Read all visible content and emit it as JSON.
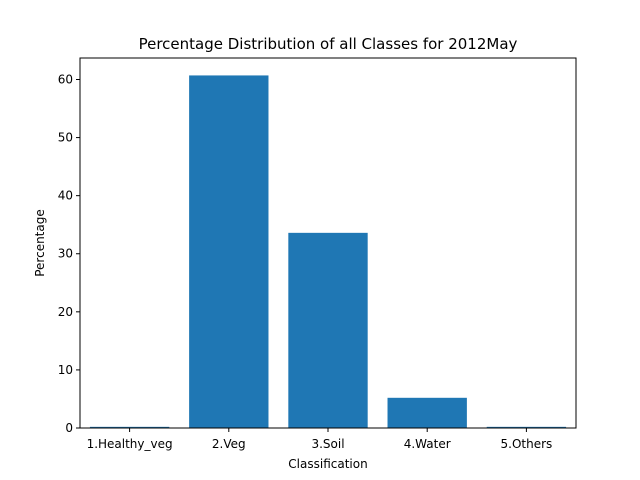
{
  "chart_data": {
    "type": "bar",
    "title": "Percentage Distribution of all Classes for 2012May",
    "xlabel": "Classification",
    "ylabel": "Percentage",
    "categories": [
      "1.Healthy_veg",
      "2.Veg",
      "3.Soil",
      "4.Water",
      "5.Others"
    ],
    "values": [
      0.2,
      60.7,
      33.6,
      5.2,
      0.2
    ],
    "ylim": [
      0,
      63.7
    ],
    "yticks": [
      0,
      10,
      20,
      30,
      40,
      50,
      60
    ],
    "bar_color": "#1f77b4",
    "grid": false,
    "legend": "none"
  }
}
